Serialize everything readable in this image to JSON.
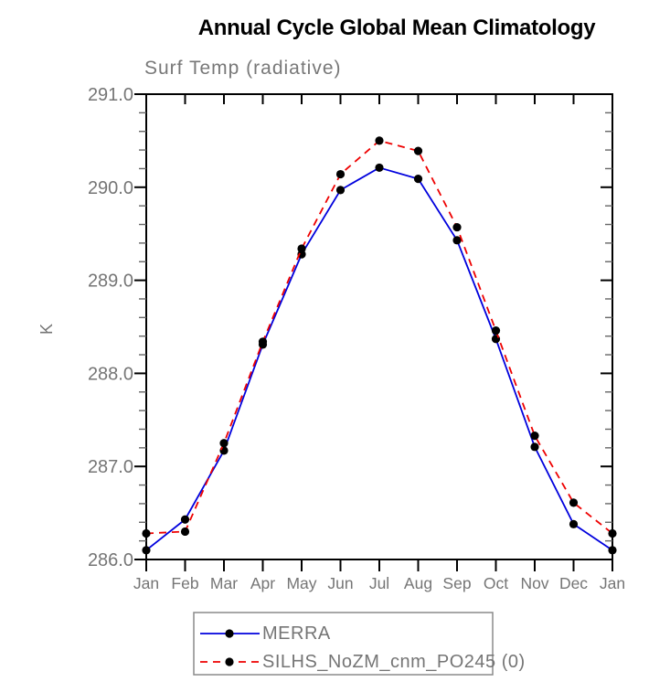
{
  "title": "Annual Cycle Global Mean Climatology",
  "subtitle": "Surf Temp (radiative)",
  "ylabel": "K",
  "chart_data": {
    "type": "line",
    "title": "Annual Cycle Global Mean Climatology",
    "subtitle": "Surf Temp (radiative)",
    "xlabel": "",
    "ylabel": "K",
    "categories": [
      "Jan",
      "Feb",
      "Mar",
      "Apr",
      "May",
      "Jun",
      "Jul",
      "Aug",
      "Sep",
      "Oct",
      "Nov",
      "Dec",
      "Jan"
    ],
    "ylim": [
      286.0,
      291.0
    ],
    "y_major_ticks": [
      286.0,
      287.0,
      288.0,
      289.0,
      290.0,
      291.0
    ],
    "y_tick_labels": [
      "286.0",
      "287.0",
      "288.0",
      "289.0",
      "290.0",
      "291.0"
    ],
    "y_minor_step": 0.2,
    "grid": false,
    "legend_position": "bottom",
    "series": [
      {
        "name": "MERRA",
        "line_style": "solid",
        "line_color": "#0000dd",
        "marker": "filled-circle",
        "marker_color": "#000000",
        "values": [
          286.1,
          286.43,
          287.17,
          288.31,
          289.28,
          289.97,
          290.21,
          290.09,
          289.43,
          288.37,
          287.21,
          286.38,
          286.1
        ]
      },
      {
        "name": "SILHS_NoZM_cnm_PO245 (0)",
        "line_style": "dashed",
        "line_color": "#ee0000",
        "marker": "filled-circle",
        "marker_color": "#000000",
        "values": [
          286.28,
          286.3,
          287.25,
          288.34,
          289.34,
          290.14,
          290.5,
          290.39,
          289.57,
          288.46,
          287.33,
          286.61,
          286.28
        ]
      }
    ]
  },
  "colors": {
    "axis": "#000000",
    "minor_tick": "#666666",
    "gray_text": "#757575",
    "legend_border": "#8a8a8a",
    "background": "#ffffff"
  }
}
